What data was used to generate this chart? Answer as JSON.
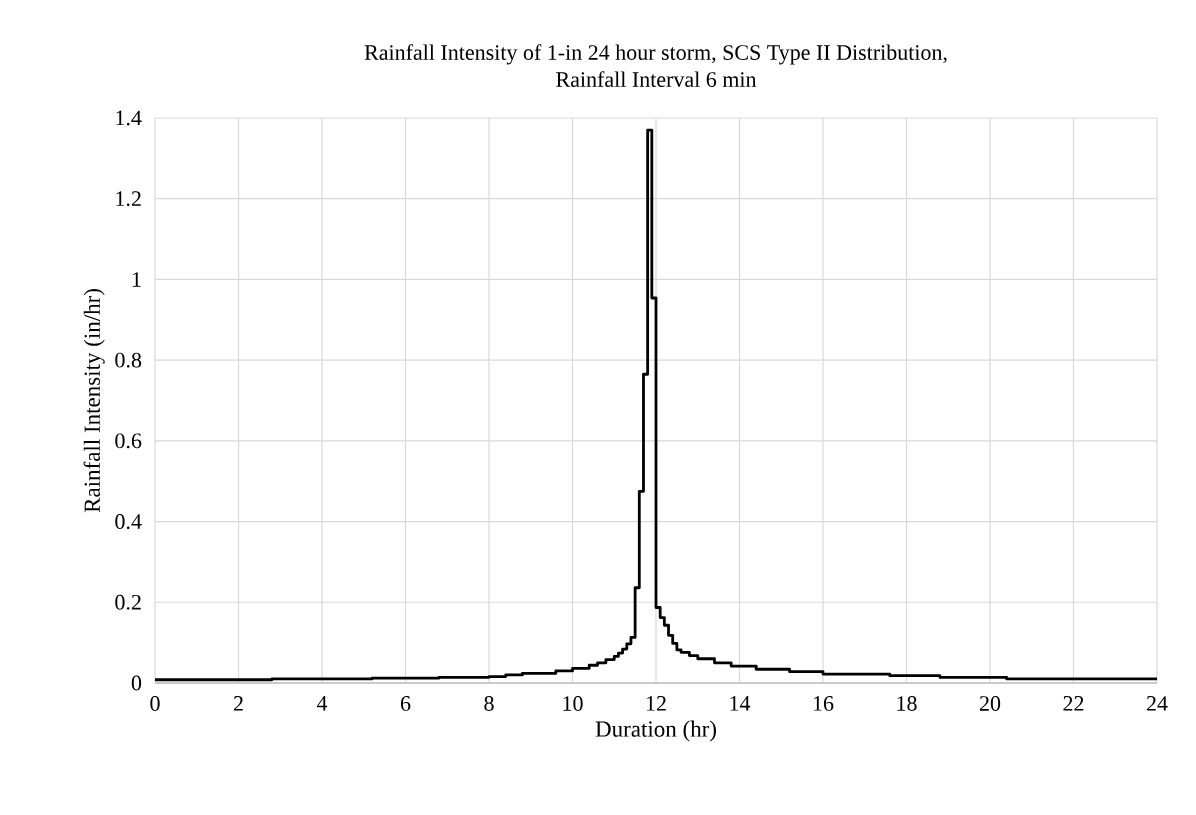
{
  "chart_data": {
    "type": "step",
    "title": "Rainfall Intensity of 1-in 24 hour storm, SCS Type II Distribution,\nRainfall Interval 6 min",
    "xlabel": "Duration (hr)",
    "ylabel": "Rainfall Intensity (in/hr)",
    "x": [
      0,
      2.8,
      5.2,
      6.8,
      8.0,
      8.4,
      8.8,
      9.6,
      10.0,
      10.4,
      10.6,
      10.8,
      11.0,
      11.1,
      11.2,
      11.3,
      11.4,
      11.5,
      11.6,
      11.7,
      11.8,
      11.9,
      12.0,
      12.1,
      12.2,
      12.3,
      12.4,
      12.5,
      12.6,
      12.8,
      13.0,
      13.4,
      13.8,
      14.4,
      15.2,
      16.0,
      17.6,
      18.8,
      20.4,
      24
    ],
    "series": [
      {
        "color": "#000000",
        "values": [
          0.008,
          0.01,
          0.012,
          0.014,
          0.016,
          0.02,
          0.024,
          0.03,
          0.036,
          0.044,
          0.05,
          0.058,
          0.066,
          0.074,
          0.084,
          0.097,
          0.113,
          0.236,
          0.475,
          0.765,
          1.37,
          0.954,
          0.187,
          0.162,
          0.143,
          0.118,
          0.098,
          0.082,
          0.076,
          0.068,
          0.06,
          0.05,
          0.042,
          0.034,
          0.028,
          0.022,
          0.018,
          0.014,
          0.01,
          0.01
        ]
      }
    ],
    "xlim": [
      0,
      24
    ],
    "xticks": [
      0,
      2,
      4,
      6,
      8,
      10,
      12,
      14,
      16,
      18,
      20,
      22,
      24
    ],
    "ylim": [
      0,
      1.4
    ],
    "yticks": [
      0,
      0.2,
      0.4,
      0.6,
      0.8,
      1,
      1.2,
      1.4
    ],
    "grid": true
  }
}
